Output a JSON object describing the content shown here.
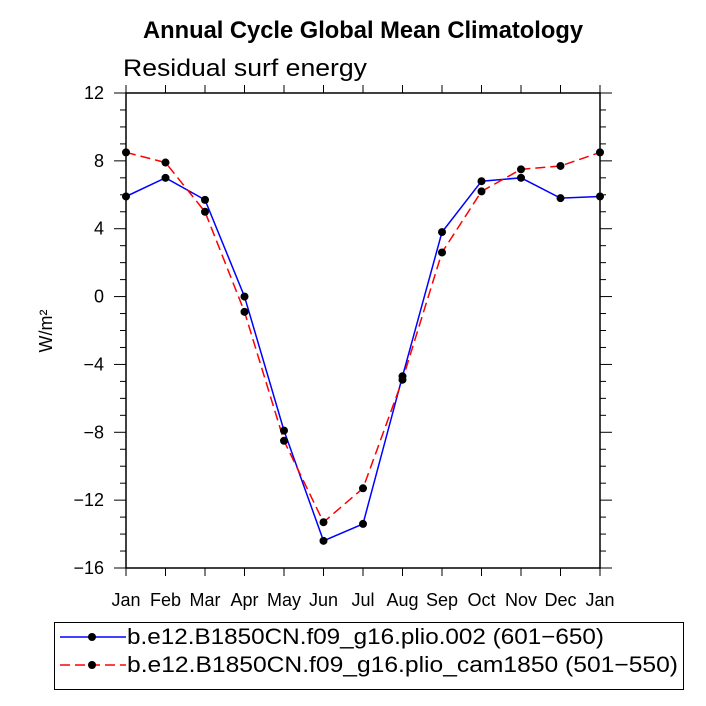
{
  "chart_data": {
    "type": "line",
    "title": "Annual Cycle Global Mean Climatology",
    "subtitle": "Residual surf energy",
    "ylabel": "W/m²",
    "categories": [
      "Jan",
      "Feb",
      "Mar",
      "Apr",
      "May",
      "Jun",
      "Jul",
      "Aug",
      "Sep",
      "Oct",
      "Nov",
      "Dec",
      "Jan"
    ],
    "ylim": [
      -16,
      12
    ],
    "yticks": [
      12,
      8,
      4,
      0,
      -4,
      -8,
      -12,
      -16
    ],
    "ytick_labels": [
      "12",
      "8",
      "4",
      "0",
      "−4",
      "−8",
      "−12",
      "−16"
    ],
    "yminor_step": 1,
    "grid": false,
    "legend_position": "bottom",
    "series": [
      {
        "name": "b.e12.B1850CN.f09_g16.plio.002 (601−650)",
        "color": "#0000ff",
        "marker_color": "#000000",
        "dashed": false,
        "values": [
          5.9,
          7.0,
          5.7,
          0.0,
          -7.9,
          -14.4,
          -13.4,
          -4.7,
          3.8,
          6.8,
          7.0,
          5.8,
          5.9
        ]
      },
      {
        "name": "b.e12.B1850CN.f09_g16.plio_cam1850 (501−550)",
        "color": "#ff0000",
        "marker_color": "#000000",
        "dashed": true,
        "values": [
          8.5,
          7.9,
          5.0,
          -0.9,
          -8.5,
          -13.3,
          -11.3,
          -4.9,
          2.6,
          6.2,
          7.5,
          7.7,
          8.5
        ]
      }
    ]
  }
}
